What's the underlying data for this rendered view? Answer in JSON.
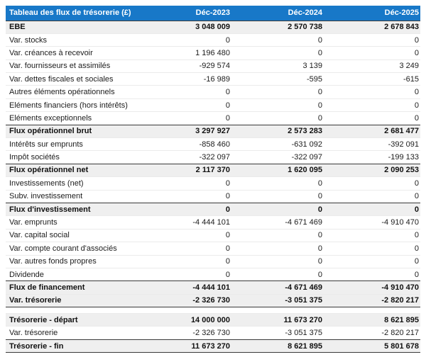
{
  "colors": {
    "header_bg": "#1878c8",
    "header_text": "#ffffff",
    "total_row_bg": "#efefef",
    "section_border": "#3a3a3a",
    "row_separator": "#ebebeb"
  },
  "chart_data": {
    "type": "table",
    "title": "Tableau des flux de trésorerie (£)",
    "columns": [
      "Déc-2023",
      "Déc-2024",
      "Déc-2025"
    ],
    "rows": [
      {
        "label": "EBE",
        "values": [
          "3 048 009",
          "2 570 738",
          "2 678 843"
        ],
        "bold": true
      },
      {
        "label": "Var. stocks",
        "values": [
          "0",
          "0",
          "0"
        ]
      },
      {
        "label": "Var. créances à recevoir",
        "values": [
          "1 196 480",
          "0",
          "0"
        ]
      },
      {
        "label": "Var. fournisseurs et assimilés",
        "values": [
          "-929 574",
          "3 139",
          "3 249"
        ]
      },
      {
        "label": "Var. dettes fiscales et sociales",
        "values": [
          "-16 989",
          "-595",
          "-615"
        ]
      },
      {
        "label": "Autres éléments opérationnels",
        "values": [
          "0",
          "0",
          "0"
        ]
      },
      {
        "label": "Eléments financiers (hors intérêts)",
        "values": [
          "0",
          "0",
          "0"
        ]
      },
      {
        "label": "Eléments exceptionnels",
        "values": [
          "0",
          "0",
          "0"
        ]
      },
      {
        "label": "Flux opérationnel brut",
        "values": [
          "3 297 927",
          "2 573 283",
          "2 681 477"
        ],
        "bold": true,
        "border_top": true
      },
      {
        "label": "Intérêts sur emprunts",
        "values": [
          "-858 460",
          "-631 092",
          "-392 091"
        ]
      },
      {
        "label": "Impôt sociétés",
        "values": [
          "-322 097",
          "-322 097",
          "-199 133"
        ]
      },
      {
        "label": "Flux opérationnel net",
        "values": [
          "2 117 370",
          "1 620 095",
          "2 090 253"
        ],
        "bold": true,
        "border_top": true
      },
      {
        "label": "Investissements (net)",
        "values": [
          "0",
          "0",
          "0"
        ]
      },
      {
        "label": "Subv. investissement",
        "values": [
          "0",
          "0",
          "0"
        ]
      },
      {
        "label": "Flux d'investissement",
        "values": [
          "0",
          "0",
          "0"
        ],
        "bold": true,
        "border_top": true
      },
      {
        "label": "Var. emprunts",
        "values": [
          "-4 444 101",
          "-4 671 469",
          "-4 910 470"
        ]
      },
      {
        "label": "Var. capital social",
        "values": [
          "0",
          "0",
          "0"
        ]
      },
      {
        "label": "Var. compte courant d'associés",
        "values": [
          "0",
          "0",
          "0"
        ]
      },
      {
        "label": "Var. autres fonds propres",
        "values": [
          "0",
          "0",
          "0"
        ]
      },
      {
        "label": "Dividende",
        "values": [
          "0",
          "0",
          "0"
        ]
      },
      {
        "label": "Flux de financement",
        "values": [
          "-4 444 101",
          "-4 671 469",
          "-4 910 470"
        ],
        "bold": true,
        "border_top": true
      },
      {
        "label": "Var. trésorerie",
        "values": [
          "-2 326 730",
          "-3 051 375",
          "-2 820 217"
        ],
        "bold": true,
        "border_bottom": true
      },
      {
        "label": "",
        "values": [
          "",
          "",
          ""
        ],
        "spacer": true
      },
      {
        "label": "Trésorerie - départ",
        "values": [
          "14 000 000",
          "11 673 270",
          "8 621 895"
        ],
        "bold": true
      },
      {
        "label": "Var. trésorerie",
        "values": [
          "-2 326 730",
          "-3 051 375",
          "-2 820 217"
        ]
      },
      {
        "label": "Trésorerie - fin",
        "values": [
          "11 673 270",
          "8 621 895",
          "5 801 678"
        ],
        "bold": true,
        "border_top": true,
        "border_bottom": true
      }
    ]
  }
}
